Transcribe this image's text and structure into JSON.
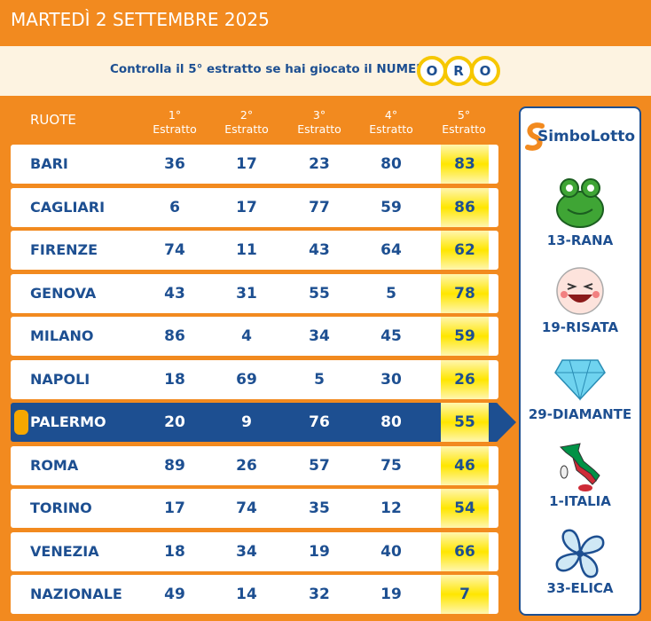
{
  "header": {
    "date": "MARTEDÌ 2 SETTEMBRE 2025"
  },
  "banner": {
    "text": "Controlla il 5° estratto se hai giocato il NUMERO",
    "oro": [
      "O",
      "R",
      "O"
    ]
  },
  "table": {
    "headers": {
      "ruote": "RUOTE",
      "columns": [
        {
          "ordinal": "1°",
          "label": "Estratto"
        },
        {
          "ordinal": "2°",
          "label": "Estratto"
        },
        {
          "ordinal": "3°",
          "label": "Estratto"
        },
        {
          "ordinal": "4°",
          "label": "Estratto"
        },
        {
          "ordinal": "5°",
          "label": "Estratto"
        }
      ]
    },
    "rows": [
      {
        "name": "BARI",
        "numbers": [
          36,
          17,
          23,
          80,
          83
        ]
      },
      {
        "name": "CAGLIARI",
        "numbers": [
          6,
          17,
          77,
          59,
          86
        ]
      },
      {
        "name": "FIRENZE",
        "numbers": [
          74,
          11,
          43,
          64,
          62
        ]
      },
      {
        "name": "GENOVA",
        "numbers": [
          43,
          31,
          55,
          5,
          78
        ]
      },
      {
        "name": "MILANO",
        "numbers": [
          86,
          4,
          34,
          45,
          59
        ]
      },
      {
        "name": "NAPOLI",
        "numbers": [
          18,
          69,
          5,
          30,
          26
        ]
      },
      {
        "name": "PALERMO",
        "numbers": [
          20,
          9,
          76,
          80,
          55
        ]
      },
      {
        "name": "ROMA",
        "numbers": [
          89,
          26,
          57,
          75,
          46
        ]
      },
      {
        "name": "TORINO",
        "numbers": [
          17,
          74,
          35,
          12,
          54
        ]
      },
      {
        "name": "VENEZIA",
        "numbers": [
          18,
          34,
          19,
          40,
          66
        ]
      },
      {
        "name": "NAZIONALE",
        "numbers": [
          49,
          14,
          32,
          19,
          7
        ]
      }
    ]
  },
  "simbolotto": {
    "logo": "SimboLotto",
    "symbols": [
      "13-RANA",
      "19-RISATA",
      "29-DIAMANTE",
      "1-ITALIA",
      "33-ELICA"
    ]
  }
}
